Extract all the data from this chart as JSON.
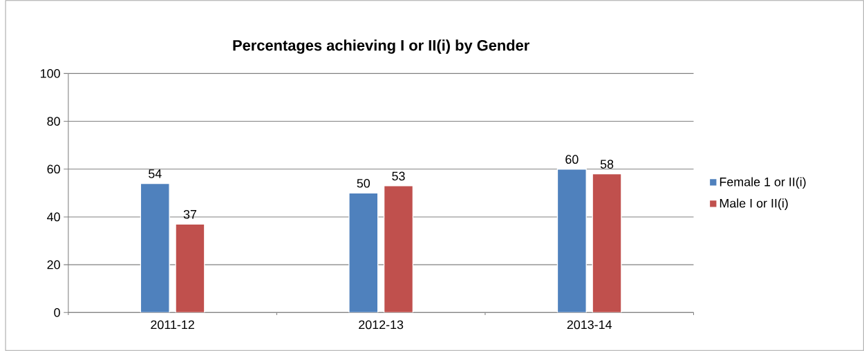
{
  "chart_data": {
    "type": "bar",
    "title": "Percentages achieving I or II(i) by Gender",
    "categories": [
      "2011-12",
      "2012-13",
      "2013-14"
    ],
    "series": [
      {
        "name": "Female 1 or II(i)",
        "color": "#4f81bd",
        "values": [
          54,
          50,
          60
        ]
      },
      {
        "name": "Male I or II(i)",
        "color": "#c0504d",
        "values": [
          37,
          53,
          58
        ]
      }
    ],
    "ylim": [
      0,
      100
    ],
    "yticks": [
      0,
      20,
      40,
      60,
      80,
      100
    ],
    "grid": "y",
    "legend": "right",
    "data_labels": true
  }
}
